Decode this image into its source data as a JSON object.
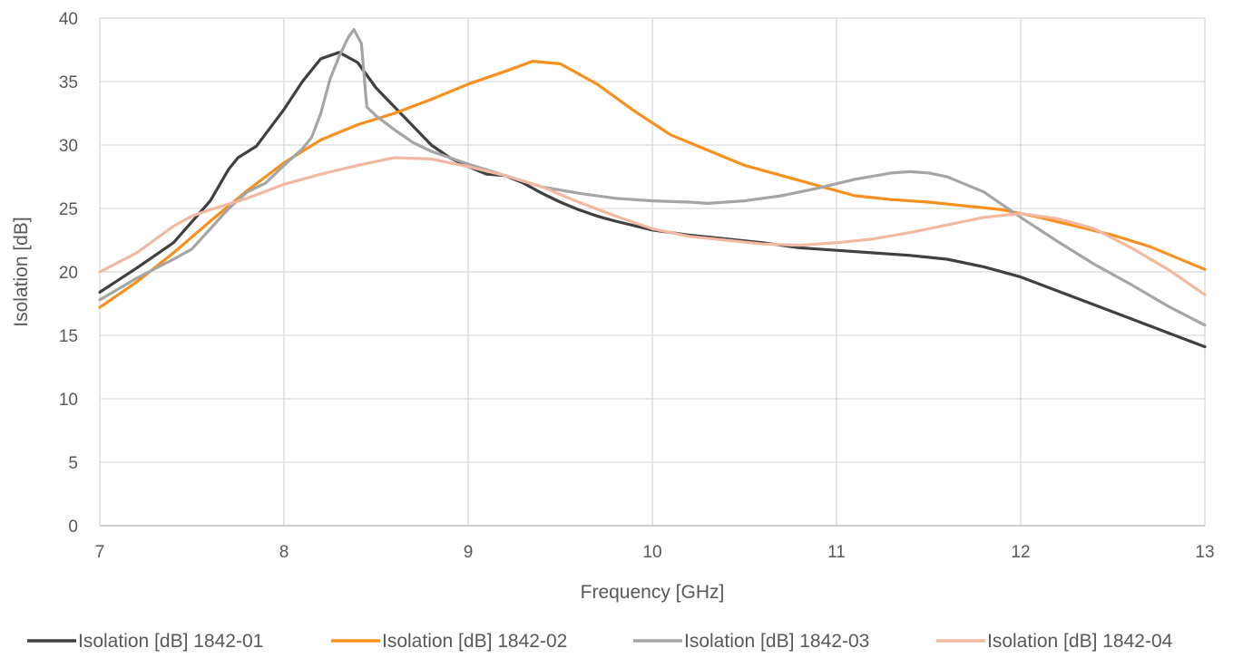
{
  "chart_data": {
    "type": "line",
    "title": "",
    "xlabel": "Frequency [GHz]",
    "ylabel": "Isolation [dB]",
    "xlim": [
      7,
      13
    ],
    "ylim": [
      0,
      40
    ],
    "x_ticks": [
      "7",
      "8",
      "9",
      "10",
      "11",
      "12",
      "13"
    ],
    "y_ticks": [
      "0",
      "5",
      "10",
      "15",
      "20",
      "25",
      "30",
      "35",
      "40"
    ],
    "grid": "major",
    "legend_position": "bottom",
    "series": [
      {
        "name": "Isolation [dB] 1842-01",
        "color": "#404040",
        "points": [
          [
            7.0,
            18.4
          ],
          [
            7.2,
            20.3
          ],
          [
            7.4,
            22.3
          ],
          [
            7.6,
            25.6
          ],
          [
            7.7,
            28.1
          ],
          [
            7.75,
            29.0
          ],
          [
            7.85,
            29.9
          ],
          [
            8.0,
            32.8
          ],
          [
            8.1,
            35.0
          ],
          [
            8.2,
            36.8
          ],
          [
            8.3,
            37.3
          ],
          [
            8.4,
            36.5
          ],
          [
            8.5,
            34.5
          ],
          [
            8.6,
            33.0
          ],
          [
            8.7,
            31.5
          ],
          [
            8.8,
            30.0
          ],
          [
            8.9,
            29.0
          ],
          [
            9.0,
            28.3
          ],
          [
            9.1,
            27.7
          ],
          [
            9.2,
            27.6
          ],
          [
            9.3,
            27.0
          ],
          [
            9.4,
            26.2
          ],
          [
            9.5,
            25.5
          ],
          [
            9.6,
            24.9
          ],
          [
            9.7,
            24.4
          ],
          [
            9.8,
            24.0
          ],
          [
            10.0,
            23.3
          ],
          [
            10.2,
            22.9
          ],
          [
            10.4,
            22.6
          ],
          [
            10.6,
            22.3
          ],
          [
            10.8,
            21.9
          ],
          [
            11.0,
            21.7
          ],
          [
            11.2,
            21.5
          ],
          [
            11.4,
            21.3
          ],
          [
            11.6,
            21.0
          ],
          [
            11.8,
            20.4
          ],
          [
            12.0,
            19.6
          ],
          [
            12.2,
            18.5
          ],
          [
            12.4,
            17.4
          ],
          [
            12.6,
            16.3
          ],
          [
            12.8,
            15.2
          ],
          [
            13.0,
            14.1
          ]
        ]
      },
      {
        "name": "Isolation [dB] 1842-02",
        "color": "#f7901e",
        "points": [
          [
            7.0,
            17.2
          ],
          [
            7.2,
            19.2
          ],
          [
            7.4,
            21.5
          ],
          [
            7.6,
            24.0
          ],
          [
            7.8,
            26.4
          ],
          [
            8.0,
            28.6
          ],
          [
            8.2,
            30.4
          ],
          [
            8.4,
            31.6
          ],
          [
            8.6,
            32.5
          ],
          [
            8.8,
            33.6
          ],
          [
            9.0,
            34.8
          ],
          [
            9.2,
            35.8
          ],
          [
            9.35,
            36.6
          ],
          [
            9.5,
            36.4
          ],
          [
            9.7,
            34.8
          ],
          [
            9.9,
            32.7
          ],
          [
            10.1,
            30.8
          ],
          [
            10.3,
            29.6
          ],
          [
            10.5,
            28.4
          ],
          [
            10.7,
            27.6
          ],
          [
            10.9,
            26.8
          ],
          [
            11.1,
            26.0
          ],
          [
            11.3,
            25.7
          ],
          [
            11.5,
            25.5
          ],
          [
            11.7,
            25.2
          ],
          [
            11.9,
            24.9
          ],
          [
            12.1,
            24.3
          ],
          [
            12.3,
            23.6
          ],
          [
            12.5,
            22.9
          ],
          [
            12.7,
            22.0
          ],
          [
            12.9,
            20.8
          ],
          [
            13.0,
            20.2
          ]
        ]
      },
      {
        "name": "Isolation [dB] 1842-03",
        "color": "#a5a5a5",
        "points": [
          [
            7.0,
            17.8
          ],
          [
            7.2,
            19.5
          ],
          [
            7.4,
            21.0
          ],
          [
            7.5,
            21.8
          ],
          [
            7.6,
            23.4
          ],
          [
            7.7,
            25.0
          ],
          [
            7.8,
            26.3
          ],
          [
            7.9,
            27.0
          ],
          [
            8.0,
            28.4
          ],
          [
            8.1,
            29.7
          ],
          [
            8.15,
            30.6
          ],
          [
            8.2,
            32.5
          ],
          [
            8.25,
            35.2
          ],
          [
            8.3,
            37.0
          ],
          [
            8.35,
            38.5
          ],
          [
            8.38,
            39.1
          ],
          [
            8.42,
            38.0
          ],
          [
            8.45,
            33.0
          ],
          [
            8.5,
            32.3
          ],
          [
            8.6,
            31.2
          ],
          [
            8.7,
            30.2
          ],
          [
            8.8,
            29.5
          ],
          [
            8.9,
            29.0
          ],
          [
            9.0,
            28.5
          ],
          [
            9.2,
            27.6
          ],
          [
            9.4,
            26.7
          ],
          [
            9.6,
            26.2
          ],
          [
            9.8,
            25.8
          ],
          [
            10.0,
            25.6
          ],
          [
            10.2,
            25.5
          ],
          [
            10.3,
            25.4
          ],
          [
            10.5,
            25.6
          ],
          [
            10.7,
            26.0
          ],
          [
            10.9,
            26.6
          ],
          [
            11.1,
            27.3
          ],
          [
            11.3,
            27.8
          ],
          [
            11.4,
            27.9
          ],
          [
            11.5,
            27.8
          ],
          [
            11.6,
            27.5
          ],
          [
            11.8,
            26.3
          ],
          [
            12.0,
            24.3
          ],
          [
            12.2,
            22.4
          ],
          [
            12.4,
            20.6
          ],
          [
            12.6,
            19.0
          ],
          [
            12.8,
            17.3
          ],
          [
            13.0,
            15.8
          ]
        ]
      },
      {
        "name": "Isolation [dB] 1842-04",
        "color": "#f2b8a0",
        "points": [
          [
            7.0,
            20.0
          ],
          [
            7.2,
            21.5
          ],
          [
            7.4,
            23.6
          ],
          [
            7.5,
            24.4
          ],
          [
            7.6,
            24.9
          ],
          [
            7.8,
            25.8
          ],
          [
            8.0,
            26.9
          ],
          [
            8.2,
            27.7
          ],
          [
            8.4,
            28.4
          ],
          [
            8.6,
            29.0
          ],
          [
            8.8,
            28.9
          ],
          [
            9.0,
            28.3
          ],
          [
            9.2,
            27.6
          ],
          [
            9.4,
            26.7
          ],
          [
            9.6,
            25.5
          ],
          [
            9.8,
            24.4
          ],
          [
            10.0,
            23.4
          ],
          [
            10.2,
            22.8
          ],
          [
            10.4,
            22.5
          ],
          [
            10.6,
            22.2
          ],
          [
            10.8,
            22.1
          ],
          [
            11.0,
            22.3
          ],
          [
            11.2,
            22.6
          ],
          [
            11.4,
            23.1
          ],
          [
            11.6,
            23.7
          ],
          [
            11.8,
            24.3
          ],
          [
            12.0,
            24.6
          ],
          [
            12.2,
            24.2
          ],
          [
            12.4,
            23.4
          ],
          [
            12.6,
            21.9
          ],
          [
            12.8,
            20.2
          ],
          [
            13.0,
            18.2
          ]
        ]
      }
    ]
  }
}
